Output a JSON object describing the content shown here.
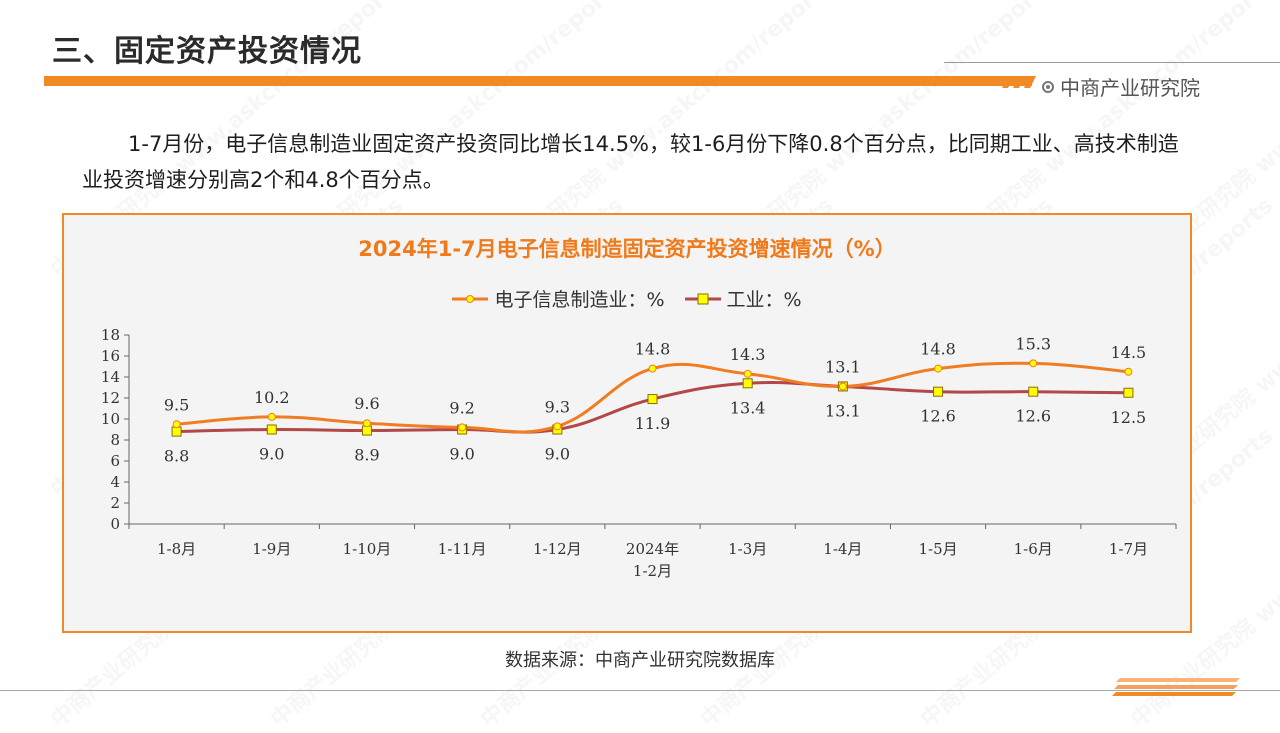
{
  "header": {
    "title": "三、固定资产投资情况",
    "brand": "中商产业研究院"
  },
  "intro": "1-7月份，电子信息制造业固定资产投资同比增长14.5%，较1-6月份下降0.8个百分点，比同期工业、高技术制造业投资增速分别高2个和4.8个百分点。",
  "source": "数据来源：中商产业研究院数据库",
  "watermark": "中商产业研究院 www.askci.com/reports",
  "colors": {
    "accent": "#f08a24",
    "title": "#f07a1a",
    "series_electronics": "#f07d22",
    "series_industry": "#b24848",
    "marker_industry": "#ffff00"
  },
  "chart_data": {
    "type": "line",
    "title": "2024年1-7月电子信息制造固定资产投资增速情况（%）",
    "categories": [
      "1-8月",
      "1-9月",
      "1-10月",
      "1-11月",
      "1-12月",
      "2024年1-2月",
      "1-3月",
      "1-4月",
      "1-5月",
      "1-6月",
      "1-7月"
    ],
    "series": [
      {
        "name": "电子信息制造业：%",
        "values": [
          9.5,
          10.2,
          9.6,
          9.2,
          9.3,
          14.8,
          14.3,
          13.1,
          14.8,
          15.3,
          14.5
        ],
        "label_text": [
          "9.5",
          "10.2",
          "9.6",
          "9.2",
          "9.3",
          "14.8",
          "14.3",
          "13.1",
          "14.8",
          "15.3",
          "14.5"
        ],
        "color": "#f07d22",
        "marker": "circle"
      },
      {
        "name": "工业：%",
        "values": [
          8.8,
          9.0,
          8.9,
          9.0,
          9.0,
          11.9,
          13.4,
          13.1,
          12.6,
          12.6,
          12.5
        ],
        "label_text": [
          "8.8",
          "9.0",
          "8.9",
          "9.0",
          "9.0",
          "11.9",
          "13.4",
          "13.1",
          "12.6",
          "12.6",
          "12.5"
        ],
        "color": "#b24848",
        "marker": "square"
      }
    ],
    "ylim": [
      0,
      18
    ],
    "yticks": [
      "0",
      "2",
      "4",
      "6",
      "8",
      "10",
      "12",
      "14",
      "16",
      "18"
    ],
    "xlabel": "",
    "ylabel": "",
    "legend": "top-center",
    "grid": false,
    "smooth": true
  }
}
